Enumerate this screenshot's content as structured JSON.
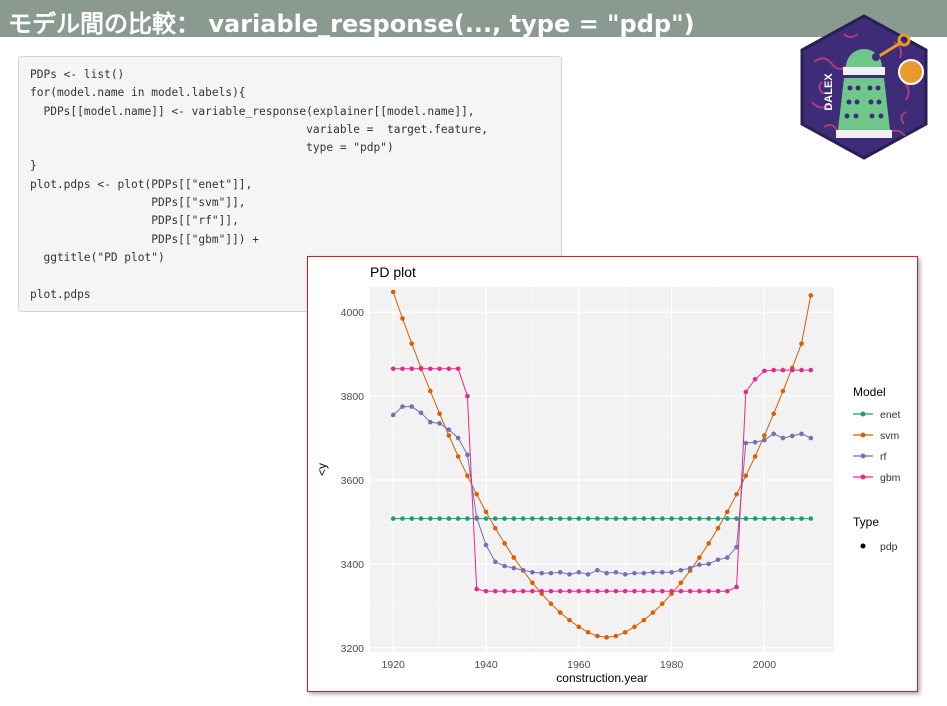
{
  "slide": {
    "title": "モデル間の比較： variable_response(..., type = \"pdp\")"
  },
  "code_block": {
    "lines": [
      "PDPs <- list()",
      "for(model.name in model.labels){",
      "  PDPs[[model.name]] <- variable_response(explainer[[model.name]],",
      "                                         variable =  target.feature,",
      "                                         type = \"pdp\")",
      "}",
      "plot.pdps <- plot(PDPs[[\"enet\"]],",
      "                  PDPs[[\"svm\"]],",
      "                  PDPs[[\"rf\"]],",
      "                  PDPs[[\"gbm\"]]) +",
      "  ggtitle(\"PD plot\")",
      "",
      "plot.pdps"
    ]
  },
  "logo": {
    "text": "DALEX",
    "icon": "dalek-icon"
  },
  "chart_data": {
    "type": "line",
    "title": "PD plot",
    "xlabel": "construction.year",
    "ylabel": "<y",
    "xlim": [
      1915,
      2015
    ],
    "ylim": [
      3190,
      4060
    ],
    "xticks": [
      1920,
      1940,
      1960,
      1980,
      2000
    ],
    "yticks": [
      3200,
      3400,
      3600,
      3800,
      4000
    ],
    "grid": true,
    "legend": {
      "placement": "right",
      "model_title": "Model",
      "type_title": "Type",
      "type_entry": "pdp"
    },
    "x": [
      1920,
      1922,
      1924,
      1926,
      1928,
      1930,
      1932,
      1934,
      1936,
      1938,
      1940,
      1942,
      1944,
      1946,
      1948,
      1950,
      1952,
      1954,
      1956,
      1958,
      1960,
      1962,
      1964,
      1966,
      1968,
      1970,
      1972,
      1974,
      1976,
      1978,
      1980,
      1982,
      1984,
      1986,
      1988,
      1990,
      1992,
      1994,
      1996,
      1998,
      2000,
      2002,
      2004,
      2006,
      2008,
      2010
    ],
    "series": [
      {
        "name": "enet",
        "color": "#1b9e77",
        "values": [
          3508,
          3508,
          3508,
          3508,
          3508,
          3508,
          3508,
          3508,
          3508,
          3508,
          3508,
          3508,
          3508,
          3508,
          3508,
          3508,
          3508,
          3508,
          3508,
          3508,
          3508,
          3508,
          3508,
          3508,
          3508,
          3508,
          3508,
          3508,
          3508,
          3508,
          3508,
          3508,
          3508,
          3508,
          3508,
          3508,
          3508,
          3508,
          3508,
          3508,
          3508,
          3508,
          3508,
          3508,
          3508,
          3508
        ]
      },
      {
        "name": "svm",
        "color": "#d95f02",
        "values": [
          4048,
          3985,
          3925,
          3867,
          3812,
          3758,
          3706,
          3656,
          3610,
          3566,
          3524,
          3485,
          3449,
          3415,
          3384,
          3355,
          3329,
          3305,
          3284,
          3266,
          3250,
          3237,
          3228,
          3225,
          3228,
          3237,
          3250,
          3266,
          3284,
          3305,
          3329,
          3355,
          3384,
          3415,
          3449,
          3485,
          3524,
          3566,
          3610,
          3656,
          3706,
          3758,
          3812,
          3867,
          3925,
          4040
        ]
      },
      {
        "name": "rf",
        "color": "#7570b3",
        "values": [
          3755,
          3775,
          3775,
          3760,
          3738,
          3735,
          3720,
          3700,
          3660,
          3510,
          3445,
          3405,
          3395,
          3390,
          3385,
          3380,
          3378,
          3378,
          3380,
          3375,
          3380,
          3375,
          3385,
          3378,
          3380,
          3375,
          3378,
          3378,
          3380,
          3380,
          3380,
          3385,
          3390,
          3398,
          3400,
          3410,
          3415,
          3440,
          3688,
          3690,
          3695,
          3710,
          3700,
          3705,
          3710,
          3700
        ]
      },
      {
        "name": "gbm",
        "color": "#e7298a",
        "values": [
          3865,
          3865,
          3865,
          3865,
          3865,
          3865,
          3865,
          3865,
          3800,
          3340,
          3335,
          3335,
          3335,
          3335,
          3335,
          3335,
          3335,
          3335,
          3335,
          3335,
          3335,
          3335,
          3335,
          3335,
          3335,
          3335,
          3335,
          3335,
          3335,
          3335,
          3335,
          3335,
          3335,
          3335,
          3335,
          3335,
          3335,
          3345,
          3810,
          3840,
          3860,
          3862,
          3862,
          3862,
          3862,
          3862
        ]
      }
    ]
  }
}
